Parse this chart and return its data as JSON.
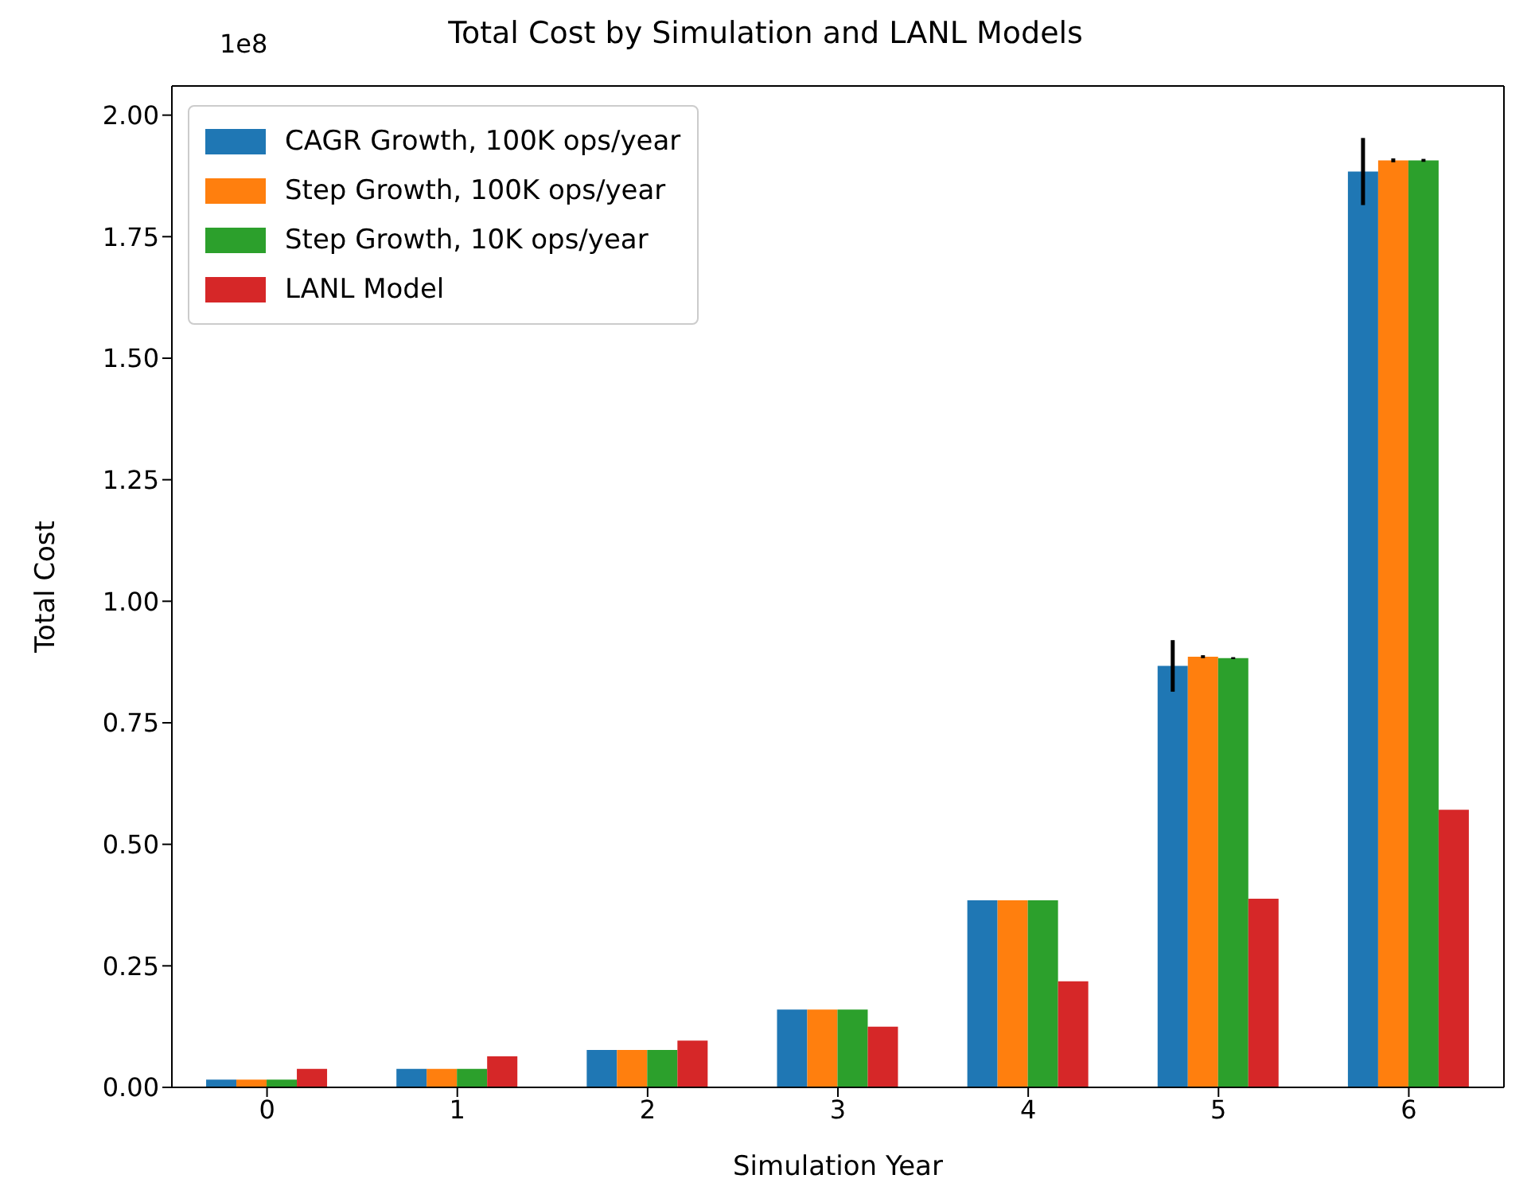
{
  "chart_data": {
    "type": "bar",
    "title": "Total Cost by Simulation and LANL Models",
    "xlabel": "Simulation Year",
    "ylabel": "Total Cost",
    "annotations": [
      "1e8"
    ],
    "categories": [
      "0",
      "1",
      "2",
      "3",
      "4",
      "5",
      "6"
    ],
    "series": [
      {
        "name": "CAGR Growth, 100K ops/year",
        "color": "#1f77b4",
        "values": [
          0.016,
          0.038,
          0.077,
          0.16,
          0.385,
          0.867,
          1.884
        ],
        "errors": [
          null,
          null,
          null,
          null,
          null,
          0.053,
          0.069
        ]
      },
      {
        "name": "Step Growth, 100K ops/year",
        "color": "#ff7f0e",
        "values": [
          0.016,
          0.038,
          0.077,
          0.16,
          0.385,
          0.886,
          1.907
        ],
        "errors": [
          null,
          null,
          null,
          null,
          null,
          0.003,
          0.004
        ]
      },
      {
        "name": "Step Growth, 10K ops/year",
        "color": "#2ca02c",
        "values": [
          0.016,
          0.038,
          0.077,
          0.16,
          0.385,
          0.883,
          1.907
        ],
        "errors": [
          null,
          null,
          null,
          null,
          null,
          0.002,
          0.003
        ]
      },
      {
        "name": "LANL Model",
        "color": "#d62728",
        "values": [
          0.038,
          0.064,
          0.096,
          0.125,
          0.218,
          0.388,
          0.571
        ]
      }
    ],
    "ylim": [
      0,
      2.06
    ],
    "yticks": [
      {
        "value": 0,
        "label": "0.00"
      },
      0.25,
      {
        "value": 0.5,
        "label": "0.50"
      },
      0.75,
      {
        "value": 1,
        "label": "1.00"
      },
      1.25,
      {
        "value": 1.5,
        "label": "1.50"
      },
      1.75,
      {
        "value": 2,
        "label": "2.00"
      }
    ],
    "grid": false,
    "legend": "top left"
  }
}
